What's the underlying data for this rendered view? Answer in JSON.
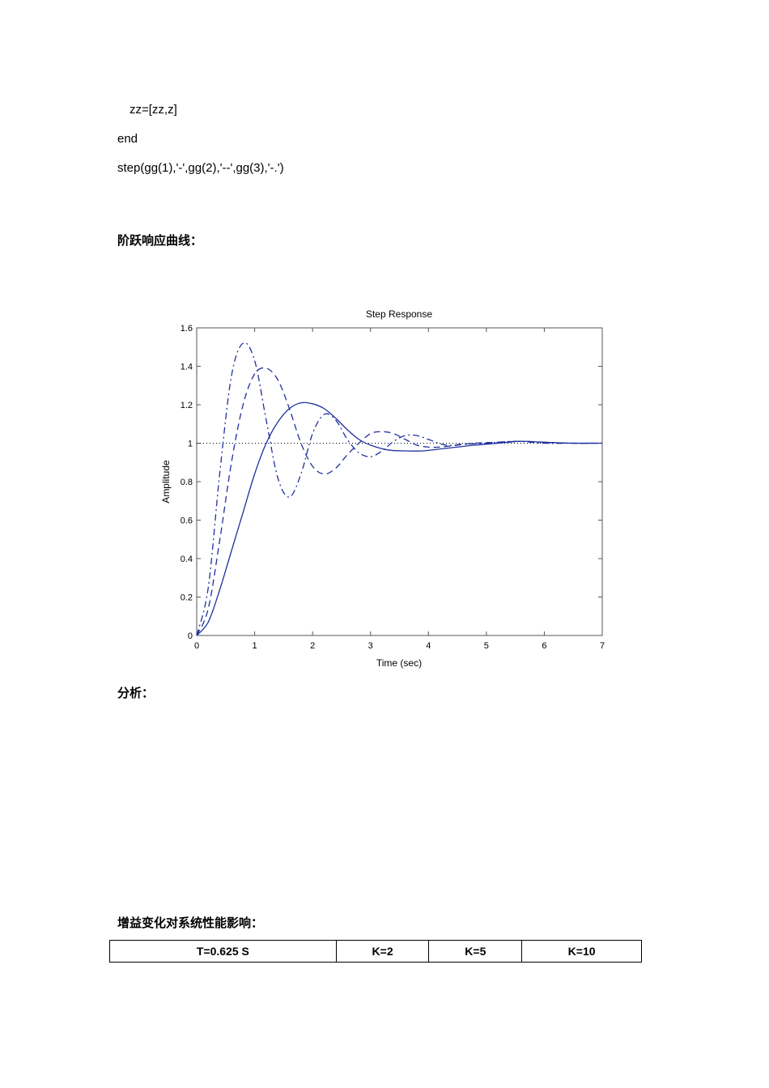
{
  "code_lines": [
    "zz=[zz,z]",
    "end",
    "step(gg(1),'-',gg(2),'--',gg(3),'-.')"
  ],
  "headings": {
    "step_curve": "阶跃响应曲线：",
    "analysis": "分析：",
    "gain_effect": "增益变化对系统性能影响："
  },
  "chart_data": {
    "type": "line",
    "title": "Step Response",
    "xlabel": "Time (sec)",
    "ylabel": "Amplitude",
    "xlim": [
      0,
      7
    ],
    "ylim": [
      0,
      1.6
    ],
    "xticks": [
      "0",
      "1",
      "2",
      "3",
      "4",
      "5",
      "6",
      "7"
    ],
    "yticks": [
      "0",
      "0.2",
      "0.4",
      "0.6",
      "0.8",
      "1",
      "1.2",
      "1.4",
      "1.6"
    ],
    "reference_line": 1,
    "line_color": "#1f2f9e",
    "series": [
      {
        "style": "-",
        "x": [
          0,
          0.2,
          0.4,
          0.6,
          0.8,
          1.0,
          1.2,
          1.4,
          1.6,
          1.8,
          2.0,
          2.2,
          2.4,
          2.6,
          2.8,
          3.0,
          3.3,
          3.6,
          3.9,
          4.2,
          4.5,
          4.8,
          5.2,
          5.6,
          6.0,
          6.5,
          7.0
        ],
        "y": [
          0,
          0.07,
          0.24,
          0.44,
          0.64,
          0.84,
          1.0,
          1.11,
          1.18,
          1.21,
          1.205,
          1.18,
          1.13,
          1.07,
          1.02,
          0.99,
          0.965,
          0.96,
          0.96,
          0.97,
          0.98,
          0.99,
          1.0,
          1.01,
          1.005,
          1.0,
          1.0
        ]
      },
      {
        "style": "--",
        "x": [
          0,
          0.2,
          0.4,
          0.6,
          0.8,
          1.0,
          1.2,
          1.4,
          1.6,
          1.8,
          2.0,
          2.2,
          2.4,
          2.6,
          2.8,
          3.0,
          3.2,
          3.4,
          3.6,
          3.8,
          4.0,
          4.2,
          4.5,
          4.8,
          5.2,
          5.6,
          6.0,
          6.5,
          7.0
        ],
        "y": [
          0,
          0.14,
          0.5,
          0.9,
          1.2,
          1.36,
          1.39,
          1.33,
          1.18,
          1.0,
          0.88,
          0.84,
          0.87,
          0.94,
          1.0,
          1.05,
          1.06,
          1.05,
          1.02,
          0.99,
          0.98,
          0.98,
          0.99,
          1.0,
          1.005,
          1.01,
          1.005,
          1.0,
          1.0
        ]
      },
      {
        "style": "-.",
        "x": [
          0,
          0.2,
          0.4,
          0.6,
          0.8,
          1.0,
          1.2,
          1.4,
          1.6,
          1.8,
          2.0,
          2.2,
          2.4,
          2.6,
          2.8,
          3.0,
          3.2,
          3.4,
          3.6,
          3.8,
          4.0,
          4.3,
          4.6,
          5.0,
          5.5,
          6.0,
          6.5,
          7.0
        ],
        "y": [
          0,
          0.25,
          0.85,
          1.35,
          1.52,
          1.43,
          1.12,
          0.82,
          0.72,
          0.84,
          1.05,
          1.15,
          1.12,
          1.02,
          0.95,
          0.93,
          0.96,
          1.01,
          1.04,
          1.04,
          1.02,
          0.99,
          0.995,
          1.0,
          1.01,
          1.0,
          1.0,
          1.0
        ]
      }
    ]
  },
  "table": {
    "headers": [
      "T=0.625 S",
      "K=2",
      "K=5",
      "K=10"
    ]
  }
}
